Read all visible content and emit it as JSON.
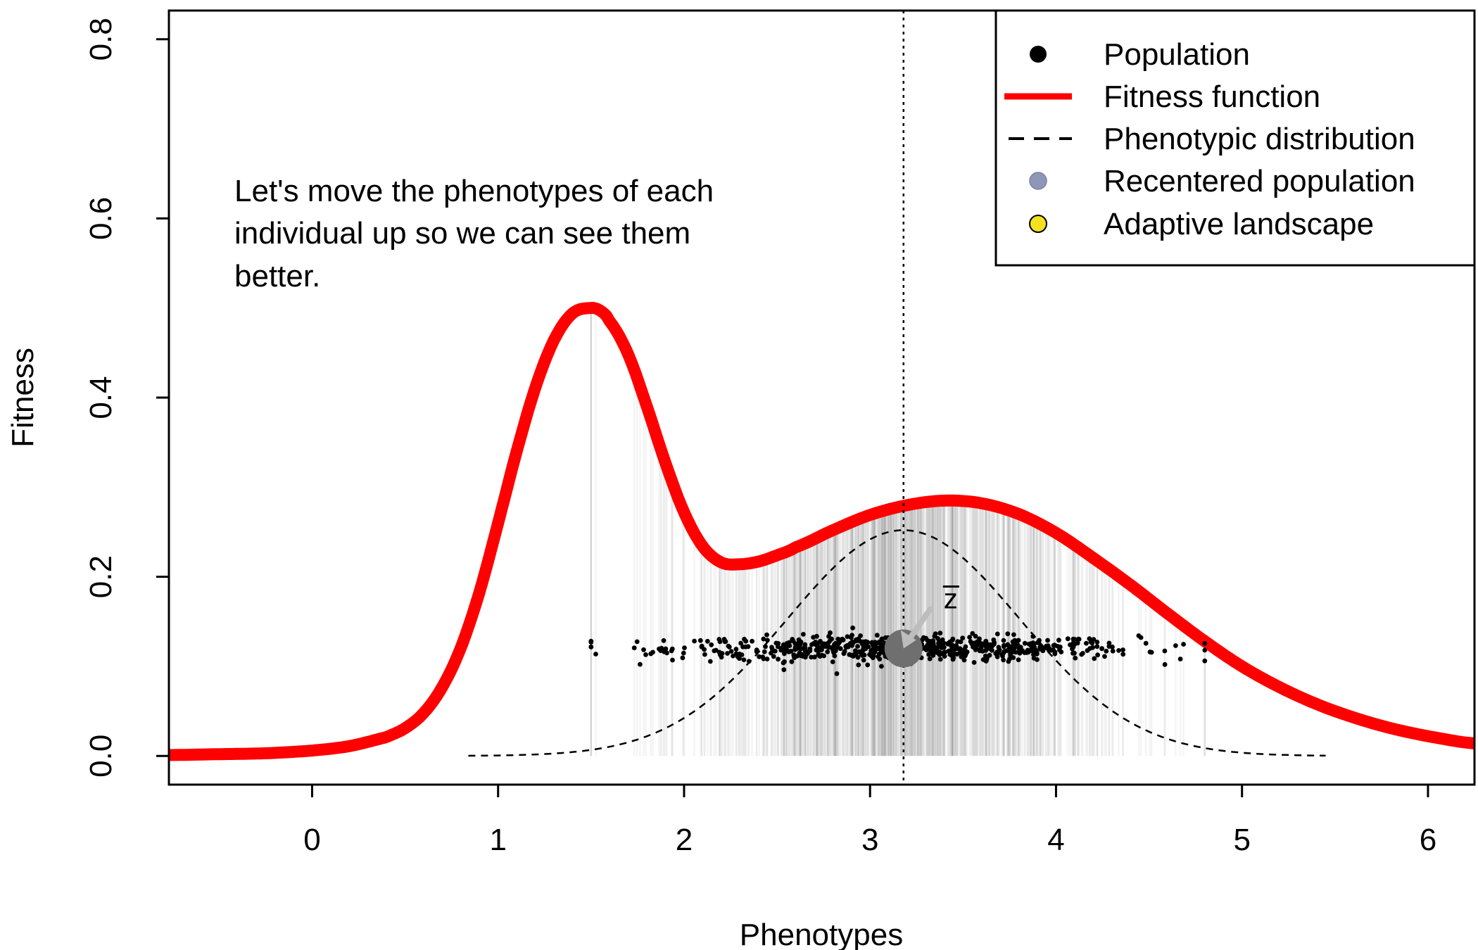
{
  "chart_data": {
    "type": "line",
    "xlabel": "Phenotypes",
    "ylabel": "Fitness",
    "xlim": [
      -0.77,
      6.25
    ],
    "ylim": [
      -0.032,
      0.832
    ],
    "x_ticks": [
      "0",
      "1",
      "2",
      "3",
      "4",
      "5",
      "6"
    ],
    "y_ticks": [
      "0.0",
      "0.2",
      "0.4",
      "0.6",
      "0.8"
    ],
    "grid": false,
    "legend_position": "top-right",
    "legend": [
      {
        "label": "Population",
        "symbol": "point",
        "color": "#000000"
      },
      {
        "label": "Fitness function",
        "symbol": "line",
        "color": "#ff0000"
      },
      {
        "label": "Phenotypic distribution",
        "symbol": "dashed-line",
        "color": "#000000"
      },
      {
        "label": "Recentered population",
        "symbol": "point",
        "color": "#8f97b8"
      },
      {
        "label": "Adaptive landscape",
        "symbol": "point",
        "color": "#f5e020"
      }
    ],
    "annotation": "Let's move the phenotypes of each individual up so we can see them better.",
    "annotation_lines": [
      "Let's move the phenotypes of each",
      "individual up so we can see them",
      "better."
    ],
    "mean_label": "z",
    "mean_phenotype": 3.18,
    "mean_fitness_marker": 0.12,
    "population_y": 0.12,
    "fitness_function": {
      "color": "#ff0000",
      "x": [
        -0.77,
        -0.5,
        -0.25,
        0,
        0.2,
        0.4,
        0.5,
        0.6,
        0.7,
        0.8,
        0.9,
        1.0,
        1.1,
        1.2,
        1.3,
        1.4,
        1.5,
        1.55,
        1.6,
        1.7,
        1.8,
        1.9,
        2.0,
        2.1,
        2.2,
        2.3,
        2.4,
        2.5,
        2.6,
        2.8,
        3.0,
        3.2,
        3.4,
        3.6,
        3.8,
        4.0,
        4.2,
        4.4,
        4.6,
        4.8,
        5.0,
        5.2,
        5.4,
        5.6,
        5.8,
        6.0,
        6.25
      ],
      "y": [
        0.001,
        0.002,
        0.003,
        0.006,
        0.011,
        0.021,
        0.031,
        0.048,
        0.077,
        0.121,
        0.183,
        0.26,
        0.34,
        0.411,
        0.464,
        0.494,
        0.5,
        0.497,
        0.485,
        0.448,
        0.39,
        0.327,
        0.272,
        0.234,
        0.216,
        0.214,
        0.217,
        0.224,
        0.233,
        0.252,
        0.269,
        0.28,
        0.285,
        0.282,
        0.27,
        0.249,
        0.221,
        0.191,
        0.159,
        0.128,
        0.1,
        0.077,
        0.058,
        0.043,
        0.031,
        0.022,
        0.014
      ]
    },
    "phenotypic_distribution": {
      "color": "#000000",
      "style": "dashed",
      "mean": 3.18,
      "sd": 0.625,
      "peak": 0.252,
      "x_range": [
        0.84,
        5.45
      ]
    },
    "population": {
      "count": 700,
      "x_range": [
        1.5,
        4.8
      ],
      "y_center": 0.12
    }
  }
}
